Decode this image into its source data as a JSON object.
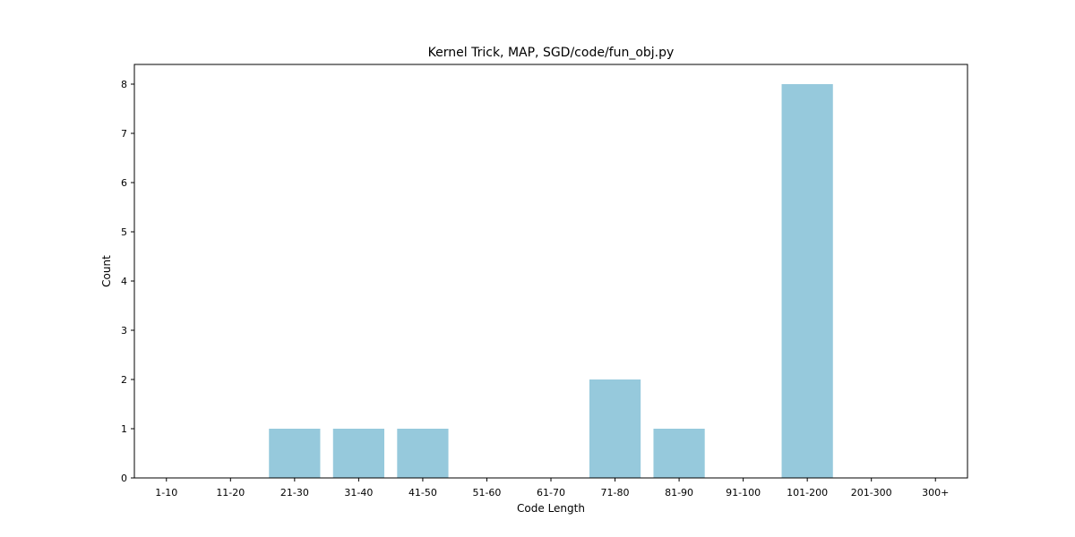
{
  "chart_data": {
    "type": "bar",
    "title": "Kernel Trick, MAP, SGD/code/fun_obj.py",
    "xlabel": "Code Length",
    "ylabel": "Count",
    "categories": [
      "1-10",
      "11-20",
      "21-30",
      "31-40",
      "41-50",
      "51-60",
      "61-70",
      "71-80",
      "81-90",
      "91-100",
      "101-200",
      "201-300",
      "300+"
    ],
    "values": [
      0,
      0,
      1,
      1,
      1,
      0,
      0,
      2,
      1,
      0,
      8,
      0,
      0
    ],
    "ylim": [
      0,
      8.4
    ],
    "yticks": [
      0,
      1,
      2,
      3,
      4,
      5,
      6,
      7,
      8
    ],
    "bar_color": "#96c9dc",
    "grid": false,
    "legend": "none"
  }
}
